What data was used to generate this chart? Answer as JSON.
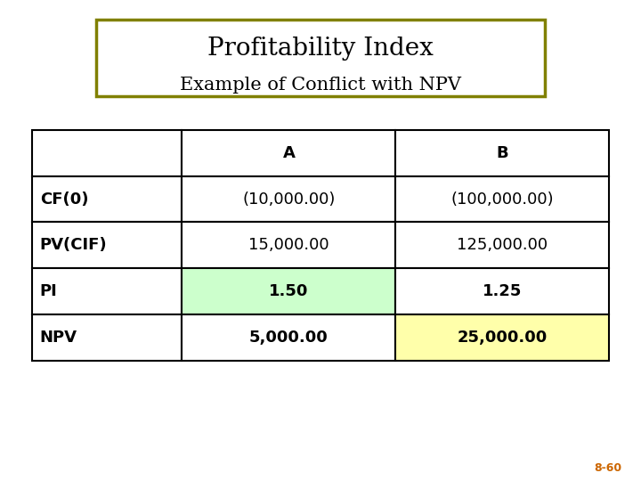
{
  "title": "Profitability Index",
  "subtitle": "Example of Conflict with NPV",
  "title_box_color": "#808000",
  "title_bg_color": "#ffffff",
  "title_fontsize": 20,
  "subtitle_fontsize": 15,
  "table": {
    "headers": [
      "",
      "A",
      "B"
    ],
    "rows": [
      [
        "CF(0)",
        "(10,000.00)",
        "(100,000.00)"
      ],
      [
        "PV(CIF)",
        "15,000.00",
        "125,000.00"
      ],
      [
        "PI",
        "1.50",
        "1.25"
      ],
      [
        "NPV",
        "5,000.00",
        "25,000.00"
      ]
    ],
    "highlight_green": [
      [
        2,
        1
      ]
    ],
    "highlight_yellow": [
      [
        3,
        2
      ]
    ],
    "bold_rows": [
      2,
      3
    ],
    "green_color": "#ccffcc",
    "yellow_color": "#ffffaa",
    "border_color": "#000000",
    "text_color": "#000000"
  },
  "footnote": "8-60",
  "footnote_color": "#cc6600",
  "footnote_fontsize": 9,
  "bg_color": "#ffffff"
}
